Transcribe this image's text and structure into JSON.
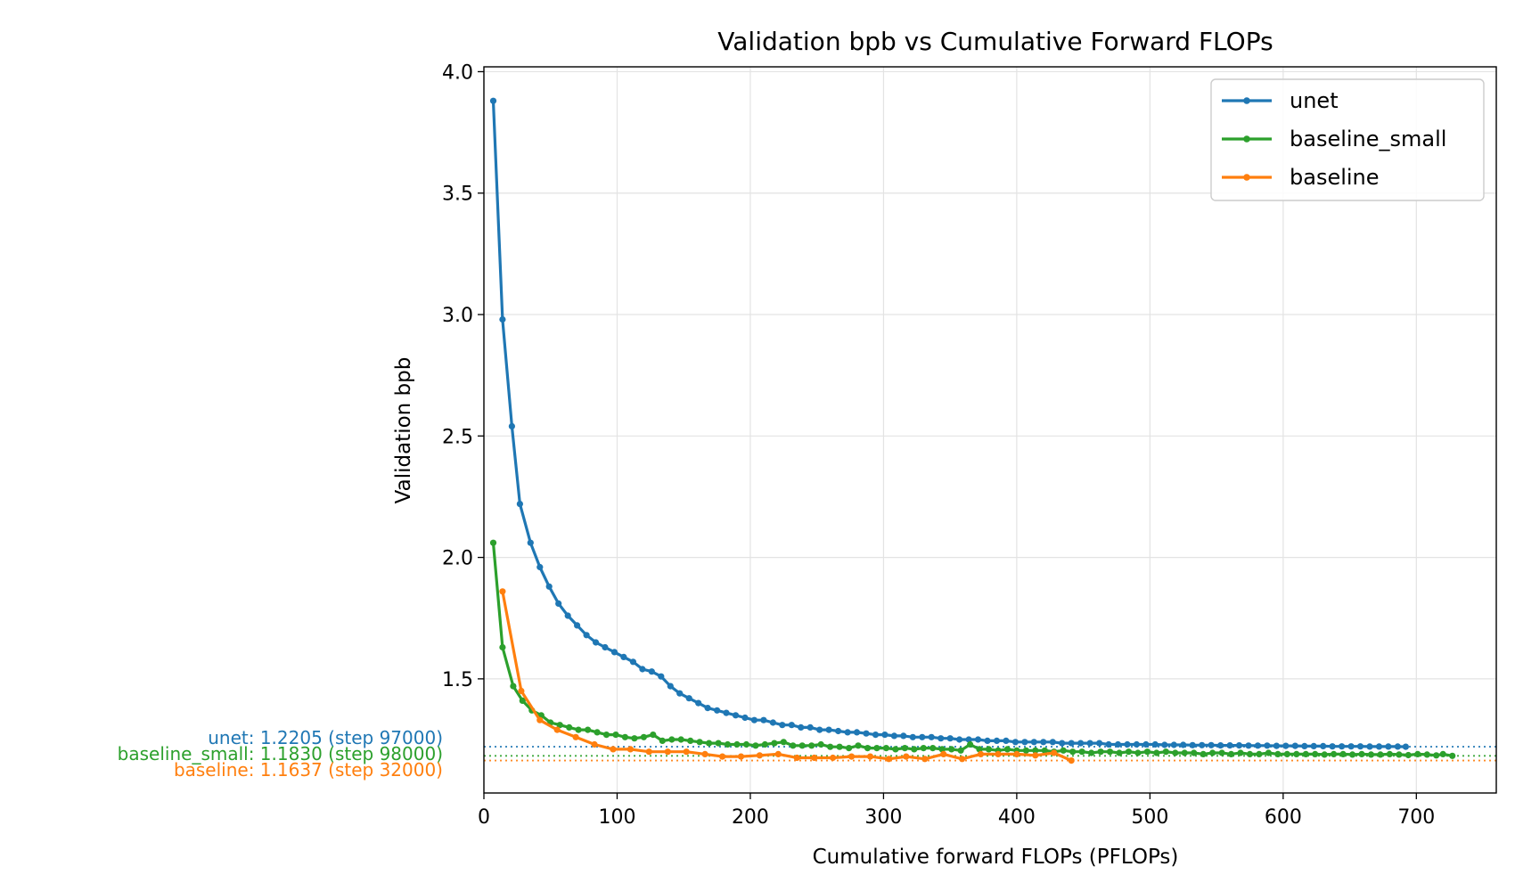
{
  "chart_data": {
    "type": "line",
    "title": "Validation bpb vs Cumulative Forward FLOPs",
    "xlabel": "Cumulative forward FLOPs (PFLOPs)",
    "ylabel": "Validation bpb",
    "xlim": [
      0,
      760
    ],
    "ylim": [
      1.03,
      4.02
    ],
    "xticks": [
      0,
      100,
      200,
      300,
      400,
      500,
      600,
      700
    ],
    "yticks": [
      1.5,
      2.0,
      2.5,
      3.0,
      3.5,
      4.0
    ],
    "grid": true,
    "legend_position": "top-right",
    "series": [
      {
        "name": "unet",
        "color": "#1f77b4",
        "final_value": 1.2205,
        "final_label": "unet: 1.2205 (step 97000)",
        "x": [
          7,
          14,
          21,
          27,
          35,
          42,
          49,
          56,
          63,
          70,
          77,
          84,
          91,
          98,
          105,
          112,
          119,
          126,
          133,
          140,
          147,
          154,
          161,
          168,
          175,
          182,
          189,
          196,
          203,
          210,
          217,
          224,
          231,
          238,
          245,
          252,
          259,
          266,
          273,
          280,
          287,
          294,
          301,
          308,
          315,
          322,
          329,
          336,
          343,
          350,
          357,
          364,
          371,
          378,
          385,
          392,
          399,
          406,
          413,
          420,
          427,
          434,
          441,
          448,
          455,
          462,
          469,
          476,
          483,
          490,
          497,
          504,
          511,
          518,
          525,
          532,
          539,
          546,
          553,
          560,
          567,
          574,
          581,
          588,
          595,
          602,
          609,
          616,
          623,
          630,
          637,
          644,
          651,
          658,
          665,
          672,
          679,
          686,
          692
        ],
        "y": [
          3.88,
          2.98,
          2.54,
          2.22,
          2.06,
          1.96,
          1.88,
          1.81,
          1.76,
          1.72,
          1.68,
          1.65,
          1.63,
          1.61,
          1.59,
          1.57,
          1.54,
          1.53,
          1.51,
          1.47,
          1.44,
          1.42,
          1.4,
          1.38,
          1.37,
          1.36,
          1.35,
          1.34,
          1.33,
          1.33,
          1.32,
          1.31,
          1.31,
          1.3,
          1.3,
          1.29,
          1.29,
          1.285,
          1.28,
          1.28,
          1.275,
          1.27,
          1.27,
          1.265,
          1.265,
          1.26,
          1.26,
          1.26,
          1.255,
          1.255,
          1.25,
          1.25,
          1.25,
          1.245,
          1.245,
          1.245,
          1.24,
          1.24,
          1.24,
          1.24,
          1.24,
          1.235,
          1.235,
          1.235,
          1.235,
          1.235,
          1.23,
          1.23,
          1.23,
          1.23,
          1.23,
          1.23,
          1.228,
          1.228,
          1.228,
          1.227,
          1.227,
          1.227,
          1.226,
          1.226,
          1.226,
          1.225,
          1.225,
          1.225,
          1.224,
          1.224,
          1.224,
          1.223,
          1.223,
          1.223,
          1.222,
          1.222,
          1.222,
          1.222,
          1.221,
          1.221,
          1.221,
          1.221,
          1.2205
        ]
      },
      {
        "name": "baseline_small",
        "color": "#2ca02c",
        "final_value": 1.183,
        "final_label": "baseline_small: 1.1830 (step 98000)",
        "x": [
          7,
          14,
          22,
          29,
          36,
          43,
          50,
          57,
          64,
          71,
          78,
          85,
          92,
          99,
          106,
          113,
          120,
          127,
          134,
          141,
          148,
          155,
          162,
          169,
          176,
          183,
          190,
          197,
          204,
          211,
          218,
          225,
          232,
          239,
          246,
          253,
          260,
          267,
          274,
          281,
          288,
          295,
          302,
          309,
          316,
          323,
          330,
          337,
          344,
          351,
          358,
          365,
          372,
          379,
          386,
          393,
          400,
          407,
          414,
          421,
          428,
          435,
          442,
          449,
          456,
          463,
          470,
          477,
          484,
          491,
          498,
          505,
          512,
          519,
          526,
          533,
          540,
          547,
          554,
          561,
          568,
          575,
          582,
          589,
          596,
          603,
          610,
          617,
          624,
          631,
          638,
          645,
          652,
          659,
          666,
          673,
          680,
          687,
          694,
          701,
          708,
          715,
          720,
          727
        ],
        "y": [
          2.06,
          1.63,
          1.47,
          1.41,
          1.37,
          1.35,
          1.32,
          1.31,
          1.3,
          1.29,
          1.29,
          1.28,
          1.27,
          1.27,
          1.26,
          1.255,
          1.26,
          1.27,
          1.245,
          1.25,
          1.25,
          1.245,
          1.24,
          1.235,
          1.235,
          1.23,
          1.23,
          1.23,
          1.225,
          1.23,
          1.235,
          1.24,
          1.225,
          1.225,
          1.225,
          1.23,
          1.22,
          1.22,
          1.215,
          1.225,
          1.215,
          1.215,
          1.215,
          1.21,
          1.215,
          1.21,
          1.215,
          1.215,
          1.21,
          1.21,
          1.205,
          1.23,
          1.21,
          1.21,
          1.205,
          1.21,
          1.205,
          1.205,
          1.205,
          1.205,
          1.2,
          1.205,
          1.2,
          1.2,
          1.195,
          1.2,
          1.2,
          1.195,
          1.2,
          1.195,
          1.2,
          1.195,
          1.2,
          1.195,
          1.195,
          1.195,
          1.19,
          1.195,
          1.195,
          1.19,
          1.195,
          1.19,
          1.19,
          1.195,
          1.19,
          1.19,
          1.19,
          1.19,
          1.19,
          1.188,
          1.19,
          1.19,
          1.188,
          1.19,
          1.188,
          1.188,
          1.19,
          1.188,
          1.186,
          1.19,
          1.188,
          1.185,
          1.19,
          1.183
        ]
      },
      {
        "name": "baseline",
        "color": "#ff7f0e",
        "final_value": 1.1637,
        "final_label": "baseline: 1.1637 (step 32000)",
        "x": [
          14,
          28,
          42,
          55,
          69,
          83,
          97,
          110,
          124,
          138,
          152,
          166,
          179,
          193,
          207,
          221,
          235,
          248,
          262,
          276,
          290,
          304,
          317,
          331,
          345,
          359,
          373,
          386,
          400,
          414,
          428,
          441
        ],
        "y": [
          1.86,
          1.45,
          1.33,
          1.29,
          1.26,
          1.23,
          1.21,
          1.21,
          1.2,
          1.2,
          1.2,
          1.19,
          1.18,
          1.18,
          1.185,
          1.19,
          1.175,
          1.175,
          1.175,
          1.18,
          1.18,
          1.17,
          1.18,
          1.17,
          1.19,
          1.17,
          1.19,
          1.19,
          1.19,
          1.185,
          1.195,
          1.1637
        ]
      }
    ]
  }
}
